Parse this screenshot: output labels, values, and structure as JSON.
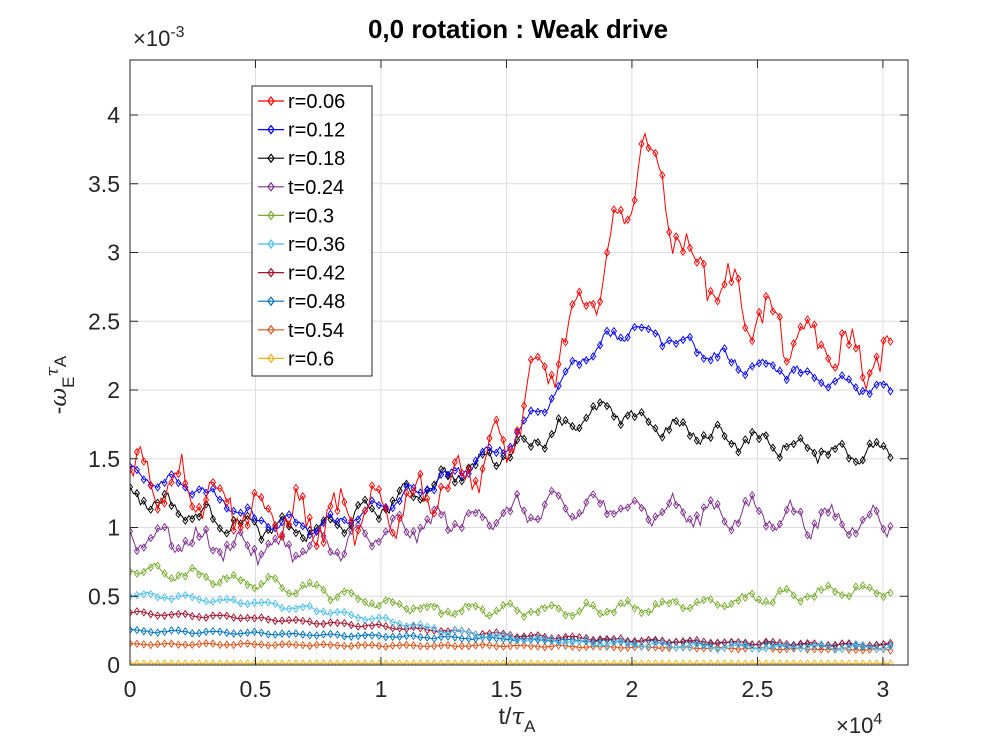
{
  "chart_data": {
    "type": "line",
    "title": "0,0 rotation : Weak drive",
    "xlabel": {
      "base": "t/",
      "symbol": "τ",
      "sub": "A"
    },
    "ylabel": {
      "prefix": "-",
      "omega": "ω",
      "omega_sub": "E",
      "tau": "τ",
      "tau_sub": "A"
    },
    "x_exponent": {
      "base": "×10",
      "power": "4"
    },
    "y_exponent": {
      "base": "×10",
      "power": "-3"
    },
    "xlim": [
      0,
      3.1
    ],
    "ylim": [
      0,
      4.4
    ],
    "x_ticks": [
      0,
      0.5,
      1,
      1.5,
      2,
      2.5,
      3
    ],
    "x_tick_labels": [
      "0",
      "0.5",
      "1",
      "1.5",
      "2",
      "2.5",
      "3"
    ],
    "y_ticks": [
      0,
      0.5,
      1,
      1.5,
      2,
      2.5,
      3,
      3.5,
      4
    ],
    "y_tick_labels": [
      "0",
      "0.5",
      "1",
      "1.5",
      "2",
      "2.5",
      "3",
      "3.5",
      "4"
    ],
    "grid": true,
    "legend_position": "top-left",
    "series": [
      {
        "name": "r=0.06",
        "color": "#ff0000",
        "x": [
          0,
          0.25,
          0.5,
          0.75,
          1.0,
          1.25,
          1.5,
          1.6,
          1.75,
          1.9,
          2.0,
          2.05,
          2.1,
          2.2,
          2.4,
          2.6,
          2.8,
          3.0
        ],
        "values": [
          1.4,
          1.3,
          1.1,
          1.05,
          1.1,
          1.3,
          1.6,
          2.0,
          2.4,
          2.9,
          3.5,
          3.8,
          3.6,
          3.0,
          2.7,
          2.4,
          2.3,
          2.2
        ],
        "noise": 0.25
      },
      {
        "name": "r=0.12",
        "color": "#0000ff",
        "x": [
          0,
          0.25,
          0.5,
          0.75,
          1.0,
          1.25,
          1.5,
          1.7,
          1.8,
          1.9,
          2.0,
          2.2,
          2.4,
          2.6,
          2.8,
          3.0
        ],
        "values": [
          1.4,
          1.3,
          1.05,
          1.0,
          1.15,
          1.35,
          1.6,
          2.0,
          2.25,
          2.35,
          2.45,
          2.35,
          2.2,
          2.15,
          2.05,
          2.0
        ],
        "noise": 0.08
      },
      {
        "name": "r=0.18",
        "color": "#000000",
        "x": [
          0,
          0.25,
          0.5,
          0.75,
          1.0,
          1.25,
          1.5,
          1.7,
          1.8,
          1.9,
          2.0,
          2.2,
          2.4,
          2.6,
          2.8,
          3.0
        ],
        "values": [
          1.25,
          1.1,
          1.0,
          0.98,
          1.15,
          1.35,
          1.55,
          1.7,
          1.8,
          1.85,
          1.8,
          1.7,
          1.65,
          1.6,
          1.55,
          1.55
        ],
        "noise": 0.1
      },
      {
        "name": "t=0.24",
        "color": "#7e2f8e",
        "x": [
          0,
          0.25,
          0.5,
          0.75,
          1.0,
          1.25,
          1.5,
          1.75,
          2.0,
          2.25,
          2.5,
          2.75,
          3.0
        ],
        "values": [
          0.95,
          0.9,
          0.85,
          0.85,
          0.95,
          1.05,
          1.1,
          1.15,
          1.15,
          1.1,
          1.1,
          1.05,
          1.05
        ],
        "noise": 0.14
      },
      {
        "name": "r=0.3",
        "color": "#77ac30",
        "x": [
          0,
          0.25,
          0.5,
          0.75,
          1.0,
          1.25,
          1.5,
          1.75,
          2.0,
          2.25,
          2.5,
          2.75,
          3.0
        ],
        "values": [
          0.7,
          0.65,
          0.6,
          0.55,
          0.45,
          0.4,
          0.4,
          0.4,
          0.42,
          0.45,
          0.48,
          0.52,
          0.55
        ],
        "noise": 0.06
      },
      {
        "name": "r=0.36",
        "color": "#4dbeee",
        "x": [
          0,
          0.25,
          0.5,
          0.75,
          1.0,
          1.25,
          1.5,
          1.75,
          2.0,
          2.25,
          2.5,
          2.75,
          3.0
        ],
        "values": [
          0.52,
          0.48,
          0.45,
          0.4,
          0.33,
          0.25,
          0.2,
          0.17,
          0.15,
          0.14,
          0.13,
          0.13,
          0.13
        ],
        "noise": 0.025
      },
      {
        "name": "r=0.42",
        "color": "#a2142f",
        "x": [
          0,
          0.25,
          0.5,
          0.75,
          1.0,
          1.25,
          1.5,
          1.75,
          2.0,
          2.25,
          2.5,
          2.75,
          3.0
        ],
        "values": [
          0.38,
          0.36,
          0.34,
          0.31,
          0.28,
          0.25,
          0.22,
          0.2,
          0.18,
          0.17,
          0.16,
          0.15,
          0.15
        ],
        "noise": 0.015
      },
      {
        "name": "r=0.48",
        "color": "#0072bd",
        "x": [
          0,
          0.5,
          1.0,
          1.5,
          2.0,
          2.5,
          3.0
        ],
        "values": [
          0.25,
          0.23,
          0.21,
          0.19,
          0.17,
          0.15,
          0.14
        ],
        "noise": 0.012
      },
      {
        "name": "t=0.54",
        "color": "#d95319",
        "x": [
          0,
          0.5,
          1.0,
          1.5,
          2.0,
          2.5,
          3.0
        ],
        "values": [
          0.15,
          0.15,
          0.14,
          0.14,
          0.13,
          0.12,
          0.11
        ],
        "noise": 0.008
      },
      {
        "name": "r=0.6",
        "color": "#edb120",
        "x": [
          0,
          1.0,
          2.0,
          3.0
        ],
        "values": [
          0.01,
          0.01,
          0.01,
          0.01
        ],
        "noise": 0.0
      }
    ]
  }
}
